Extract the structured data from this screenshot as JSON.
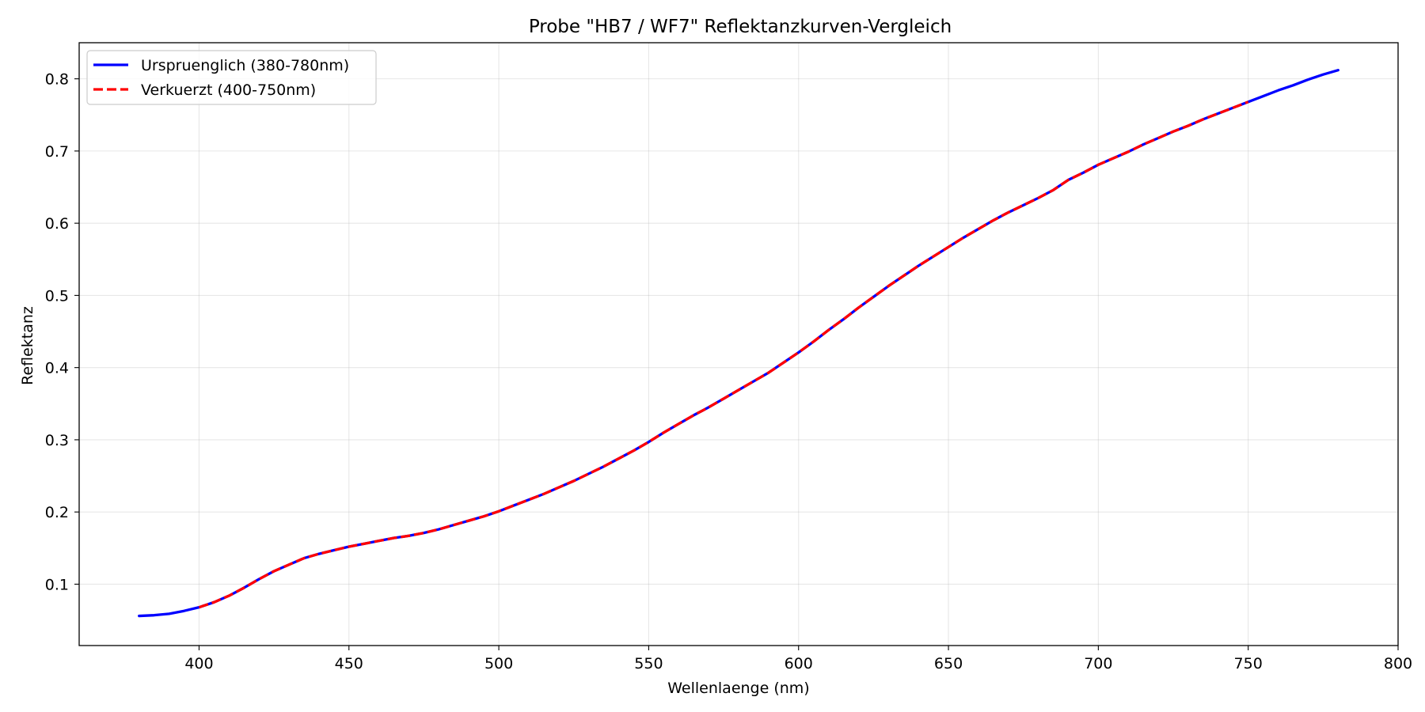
{
  "chart_data": {
    "type": "line",
    "title": "Probe \"HB7 / WF7\" Reflektanzkurven-Vergleich",
    "xlabel": "Wellenlaenge (nm)",
    "ylabel": "Reflektanz",
    "xlim": [
      360,
      800
    ],
    "ylim": [
      0.015,
      0.85
    ],
    "xticks": [
      400,
      450,
      500,
      550,
      600,
      650,
      700,
      750,
      800
    ],
    "xtick_labels": [
      "400",
      "450",
      "500",
      "550",
      "600",
      "650",
      "700",
      "750",
      "800"
    ],
    "yticks": [
      0.1,
      0.2,
      0.3,
      0.4,
      0.5,
      0.6,
      0.7,
      0.8
    ],
    "ytick_labels": [
      "0.1",
      "0.2",
      "0.3",
      "0.4",
      "0.5",
      "0.6",
      "0.7",
      "0.8"
    ],
    "grid": true,
    "legend": "top-left",
    "series": [
      {
        "name": "Urspruenglich (380-780nm)",
        "color": "#0000ff",
        "style": "solid",
        "x": [
          380,
          385,
          390,
          395,
          400,
          405,
          410,
          415,
          420,
          425,
          430,
          435,
          440,
          445,
          450,
          455,
          460,
          465,
          470,
          475,
          480,
          485,
          490,
          495,
          500,
          505,
          510,
          515,
          520,
          525,
          530,
          535,
          540,
          545,
          550,
          555,
          560,
          565,
          570,
          575,
          580,
          585,
          590,
          595,
          600,
          605,
          610,
          615,
          620,
          625,
          630,
          635,
          640,
          645,
          650,
          655,
          660,
          665,
          670,
          675,
          680,
          685,
          690,
          695,
          700,
          705,
          710,
          715,
          720,
          725,
          730,
          735,
          740,
          745,
          750,
          755,
          760,
          765,
          770,
          775,
          780
        ],
        "y": [
          0.056,
          0.057,
          0.059,
          0.063,
          0.068,
          0.075,
          0.084,
          0.095,
          0.107,
          0.118,
          0.127,
          0.136,
          0.142,
          0.147,
          0.152,
          0.156,
          0.16,
          0.164,
          0.167,
          0.171,
          0.176,
          0.182,
          0.188,
          0.194,
          0.201,
          0.209,
          0.217,
          0.225,
          0.234,
          0.243,
          0.253,
          0.263,
          0.274,
          0.285,
          0.297,
          0.31,
          0.322,
          0.334,
          0.345,
          0.357,
          0.369,
          0.381,
          0.393,
          0.407,
          0.421,
          0.436,
          0.452,
          0.467,
          0.483,
          0.498,
          0.513,
          0.527,
          0.541,
          0.554,
          0.567,
          0.58,
          0.592,
          0.604,
          0.615,
          0.625,
          0.635,
          0.646,
          0.66,
          0.67,
          0.681,
          0.69,
          0.699,
          0.709,
          0.718,
          0.727,
          0.735,
          0.744,
          0.752,
          0.76,
          0.768,
          0.776,
          0.784,
          0.791,
          0.799,
          0.806,
          0.812
        ]
      },
      {
        "name": "Verkuerzt (400-750nm)",
        "color": "#ff0000",
        "style": "dashed",
        "x": [
          400,
          405,
          410,
          415,
          420,
          425,
          430,
          435,
          440,
          445,
          450,
          455,
          460,
          465,
          470,
          475,
          480,
          485,
          490,
          495,
          500,
          505,
          510,
          515,
          520,
          525,
          530,
          535,
          540,
          545,
          550,
          555,
          560,
          565,
          570,
          575,
          580,
          585,
          590,
          595,
          600,
          605,
          610,
          615,
          620,
          625,
          630,
          635,
          640,
          645,
          650,
          655,
          660,
          665,
          670,
          675,
          680,
          685,
          690,
          695,
          700,
          705,
          710,
          715,
          720,
          725,
          730,
          735,
          740,
          745,
          750
        ],
        "y": [
          0.068,
          0.075,
          0.084,
          0.095,
          0.107,
          0.118,
          0.127,
          0.136,
          0.142,
          0.147,
          0.152,
          0.156,
          0.16,
          0.164,
          0.167,
          0.171,
          0.176,
          0.182,
          0.188,
          0.194,
          0.201,
          0.209,
          0.217,
          0.225,
          0.234,
          0.243,
          0.253,
          0.263,
          0.274,
          0.285,
          0.297,
          0.31,
          0.322,
          0.334,
          0.345,
          0.357,
          0.369,
          0.381,
          0.393,
          0.407,
          0.421,
          0.436,
          0.452,
          0.467,
          0.483,
          0.498,
          0.513,
          0.527,
          0.541,
          0.554,
          0.567,
          0.58,
          0.592,
          0.604,
          0.615,
          0.625,
          0.635,
          0.646,
          0.66,
          0.67,
          0.681,
          0.69,
          0.699,
          0.709,
          0.718,
          0.727,
          0.735,
          0.744,
          0.752,
          0.76,
          0.768
        ]
      }
    ]
  }
}
